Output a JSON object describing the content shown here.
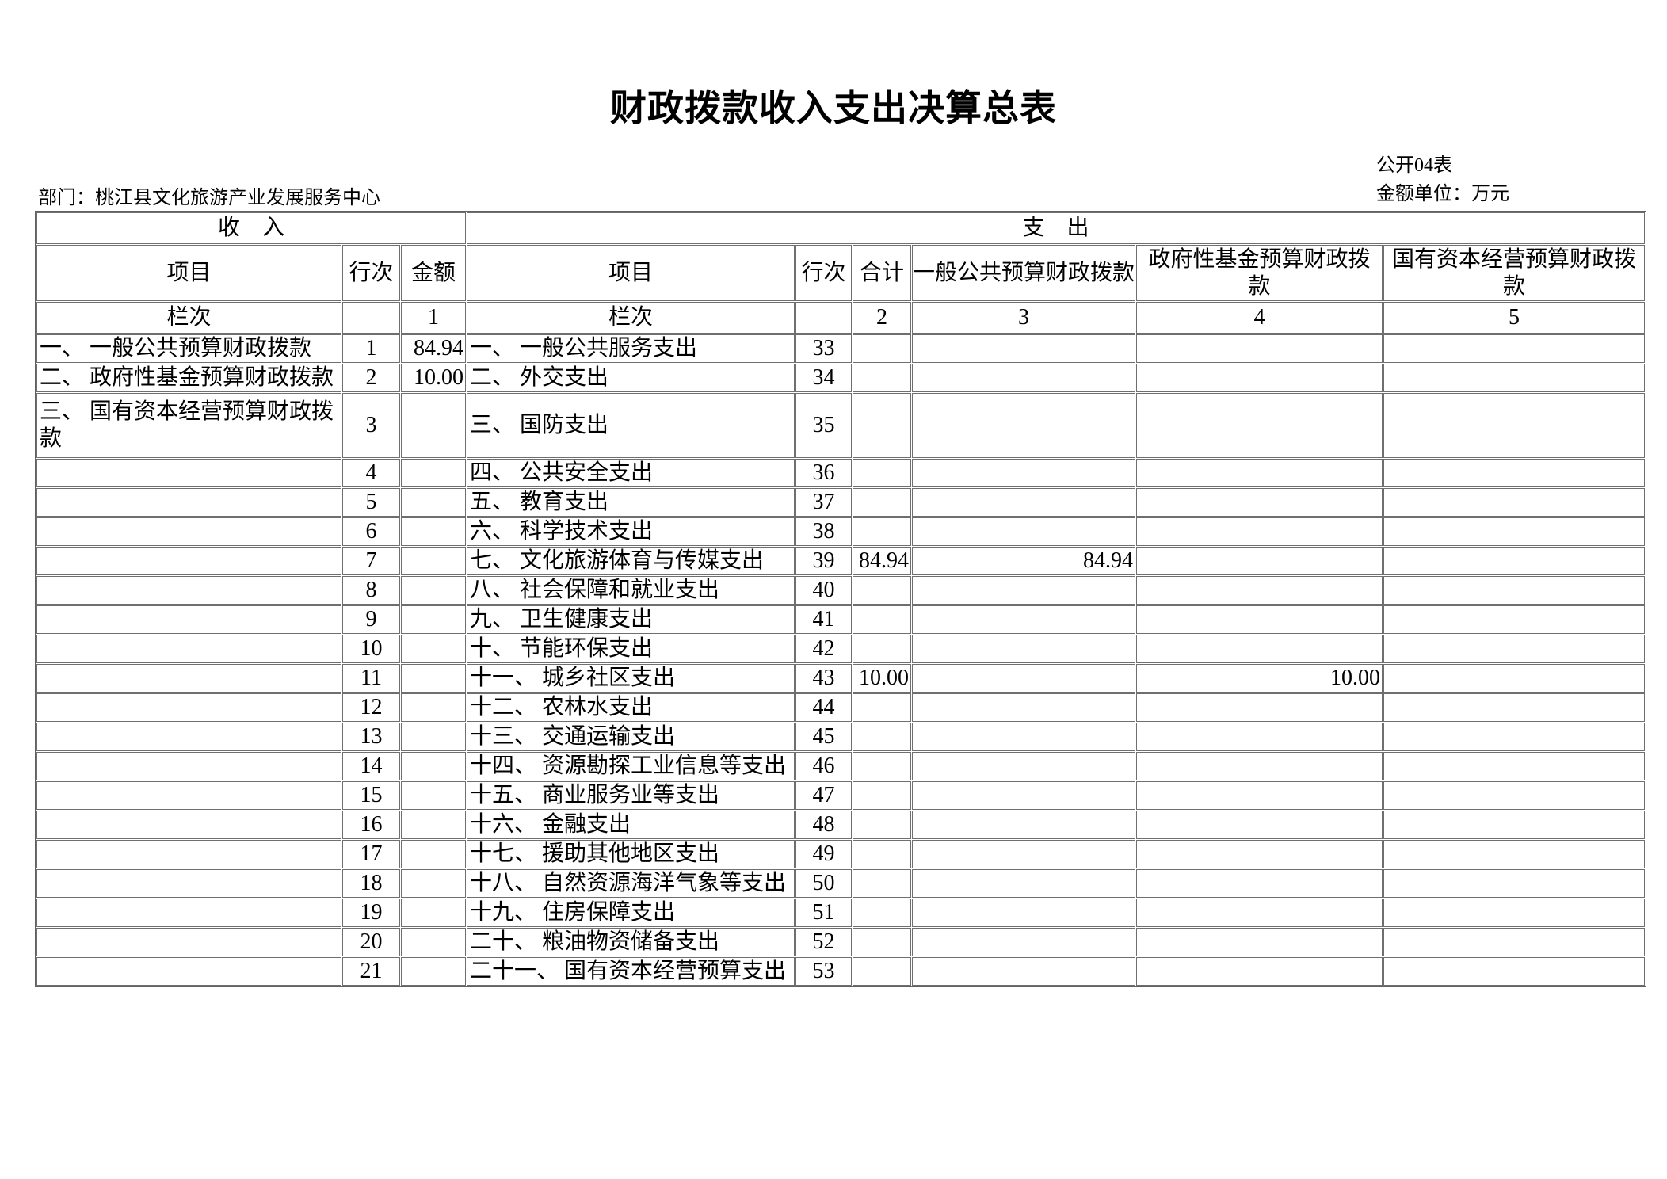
{
  "page": {
    "title": "财政拨款收入支出决算总表",
    "table_code": "公开04表",
    "unit_label": "金额单位：万元",
    "department": "部门：桃江县文化旅游产业发展服务中心"
  },
  "table": {
    "income_header": "收　入",
    "expense_header": "支　出",
    "income_columns": [
      "项目",
      "行次",
      "金额"
    ],
    "expense_columns": [
      "项目",
      "行次",
      "合计",
      "一般公共预算财政拨款",
      "政府性基金预算财政拨\n款",
      "国有资本经营预算财政拨\n款"
    ],
    "column_index_row": [
      "栏次",
      "",
      "1",
      "栏次",
      "",
      "2",
      "3",
      "4",
      "5"
    ],
    "rows": [
      [
        "一、 一般公共预算财政拨款",
        "1",
        "84.94",
        "一、 一般公共服务支出",
        "33",
        "",
        "",
        "",
        ""
      ],
      [
        "二、 政府性基金预算财政拨款",
        "2",
        "10.00",
        "二、 外交支出",
        "34",
        "",
        "",
        "",
        ""
      ],
      [
        "三、 国有资本经营预算财政拨\n款",
        "3",
        "",
        "三、 国防支出",
        "35",
        "",
        "",
        "",
        ""
      ],
      [
        "",
        "4",
        "",
        "四、 公共安全支出",
        "36",
        "",
        "",
        "",
        ""
      ],
      [
        "",
        "5",
        "",
        "五、 教育支出",
        "37",
        "",
        "",
        "",
        ""
      ],
      [
        "",
        "6",
        "",
        "六、 科学技术支出",
        "38",
        "",
        "",
        "",
        ""
      ],
      [
        "",
        "7",
        "",
        "七、 文化旅游体育与传媒支出",
        "39",
        "84.94",
        "84.94",
        "",
        ""
      ],
      [
        "",
        "8",
        "",
        "八、 社会保障和就业支出",
        "40",
        "",
        "",
        "",
        ""
      ],
      [
        "",
        "9",
        "",
        "九、 卫生健康支出",
        "41",
        "",
        "",
        "",
        ""
      ],
      [
        "",
        "10",
        "",
        "十、 节能环保支出",
        "42",
        "",
        "",
        "",
        ""
      ],
      [
        "",
        "11",
        "",
        "十一、 城乡社区支出",
        "43",
        "10.00",
        "",
        "10.00",
        ""
      ],
      [
        "",
        "12",
        "",
        "十二、 农林水支出",
        "44",
        "",
        "",
        "",
        ""
      ],
      [
        "",
        "13",
        "",
        "十三、 交通运输支出",
        "45",
        "",
        "",
        "",
        ""
      ],
      [
        "",
        "14",
        "",
        "十四、 资源勘探工业信息等支出",
        "46",
        "",
        "",
        "",
        ""
      ],
      [
        "",
        "15",
        "",
        "十五、 商业服务业等支出",
        "47",
        "",
        "",
        "",
        ""
      ],
      [
        "",
        "16",
        "",
        "十六、 金融支出",
        "48",
        "",
        "",
        "",
        ""
      ],
      [
        "",
        "17",
        "",
        "十七、 援助其他地区支出",
        "49",
        "",
        "",
        "",
        ""
      ],
      [
        "",
        "18",
        "",
        "十八、 自然资源海洋气象等支出",
        "50",
        "",
        "",
        "",
        ""
      ],
      [
        "",
        "19",
        "",
        "十九、 住房保障支出",
        "51",
        "",
        "",
        "",
        ""
      ],
      [
        "",
        "20",
        "",
        "二十、 粮油物资储备支出",
        "52",
        "",
        "",
        "",
        ""
      ],
      [
        "",
        "21",
        "",
        "二十一、 国有资本经营预算支出",
        "53",
        "",
        "",
        "",
        ""
      ]
    ]
  }
}
